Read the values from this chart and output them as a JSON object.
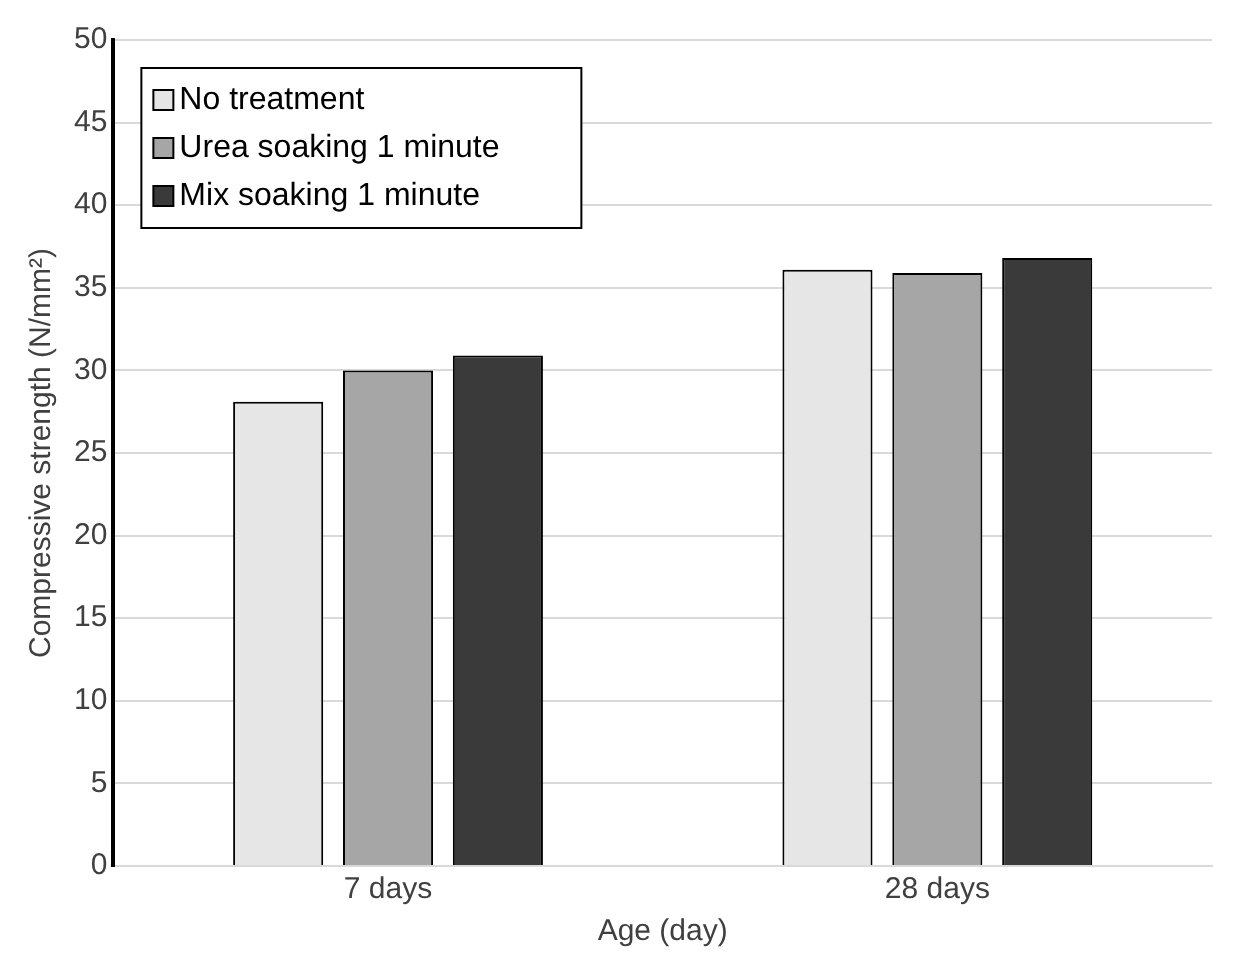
{
  "chart_data": {
    "type": "bar",
    "xlabel": "Age (day)",
    "ylabel": "Compressive strength (N/mm²)",
    "categories": [
      "7 days",
      "28 days"
    ],
    "series": [
      {
        "name": "No treatment",
        "color": "#e6e6e6",
        "values": [
          28.1,
          36.1
        ]
      },
      {
        "name": "Urea soaking 1 minute",
        "color": "#a6a6a6",
        "values": [
          30.0,
          35.9
        ]
      },
      {
        "name": "Mix soaking 1 minute",
        "color": "#3a3a3a",
        "values": [
          30.9,
          36.8
        ]
      }
    ],
    "ylim": [
      0,
      50
    ],
    "yticks": [
      0,
      5,
      10,
      15,
      20,
      25,
      30,
      35,
      40,
      45,
      50
    ],
    "grid": "y",
    "legend": "top left"
  }
}
